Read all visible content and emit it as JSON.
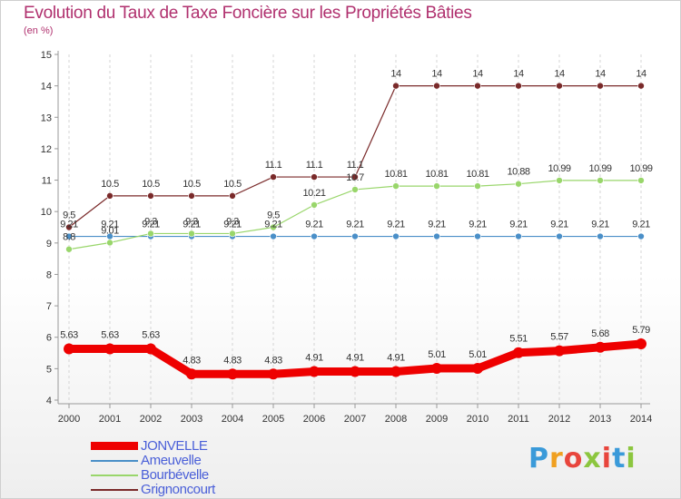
{
  "chart_data": {
    "type": "line",
    "title": "Evolution du Taux de Taxe Foncière sur les Propriétés Bâties",
    "subtitle": "(en %)",
    "xlabel": "",
    "ylabel": "(en %)",
    "ylim": [
      4,
      15
    ],
    "yticks": [
      "4",
      "5",
      "6",
      "7",
      "8",
      "9",
      "10",
      "11",
      "12",
      "13",
      "14",
      "15"
    ],
    "grid": "vertical",
    "categories": [
      "2000",
      "2001",
      "2002",
      "2003",
      "2004",
      "2005",
      "2006",
      "2007",
      "2008",
      "2009",
      "2010",
      "2011",
      "2012",
      "2013",
      "2014"
    ],
    "series": [
      {
        "name": "JONVELLE",
        "color": "#ee0000",
        "values": [
          5.63,
          5.63,
          5.63,
          4.83,
          4.83,
          4.83,
          4.91,
          4.91,
          4.91,
          5.01,
          5.01,
          5.51,
          5.57,
          5.68,
          5.79
        ],
        "labels": [
          "5.63",
          "5.63",
          "5.63",
          "4.83",
          "4.83",
          "4.83",
          "4.91",
          "4.91",
          "4.91",
          "5.01",
          "5.01",
          "5.51",
          "5.57",
          "5.68",
          "5.79"
        ]
      },
      {
        "name": "Ameuvelle",
        "color": "#4a8fc8",
        "values": [
          9.21,
          9.21,
          9.21,
          9.21,
          9.21,
          9.21,
          9.21,
          9.21,
          9.21,
          9.21,
          9.21,
          9.21,
          9.21,
          9.21,
          9.21
        ],
        "labels": [
          "9.21",
          "9.21",
          "9.21",
          "9.21",
          "9.21",
          "9.21",
          "9.21",
          "9.21",
          "9.21",
          "9.21",
          "9.21",
          "9.21",
          "9.21",
          "9.21",
          "9.21"
        ]
      },
      {
        "name": "Bourbévelle",
        "color": "#99d66b",
        "values": [
          8.8,
          9.01,
          9.3,
          9.3,
          9.3,
          9.5,
          10.21,
          10.7,
          10.81,
          10.81,
          10.81,
          10.88,
          10.99,
          10.99,
          10.99
        ],
        "labels": [
          "8.8",
          "9.01",
          "9.3",
          "9.3",
          "9.3",
          "9.5",
          "10.21",
          "10.7",
          "10.81",
          "10.81",
          "10.81",
          "10.88",
          "10.99",
          "10.99",
          "10.99"
        ]
      },
      {
        "name": "Grignoncourt",
        "color": "#7a2a2a",
        "values": [
          9.5,
          10.5,
          10.5,
          10.5,
          10.5,
          11.1,
          11.1,
          11.1,
          14,
          14,
          14,
          14,
          14,
          14,
          14
        ],
        "labels": [
          "9.5",
          "10.5",
          "10.5",
          "10.5",
          "10.5",
          "11.1",
          "11.1",
          "11.1",
          "14",
          "14",
          "14",
          "14",
          "14",
          "14",
          "14"
        ]
      }
    ]
  },
  "legend": {
    "items": [
      {
        "label": "JONVELLE",
        "color": "#ee0000",
        "text_color": "#4a5fd8"
      },
      {
        "label": "Ameuvelle",
        "color": "#4a8fc8",
        "text_color": "#4a5fd8"
      },
      {
        "label": "Bourbévelle",
        "color": "#99d66b",
        "text_color": "#4a5fd8"
      },
      {
        "label": "Grignoncourt",
        "color": "#7a2a2a",
        "text_color": "#4a5fd8"
      }
    ]
  },
  "logo": {
    "text": "Proxiti"
  }
}
